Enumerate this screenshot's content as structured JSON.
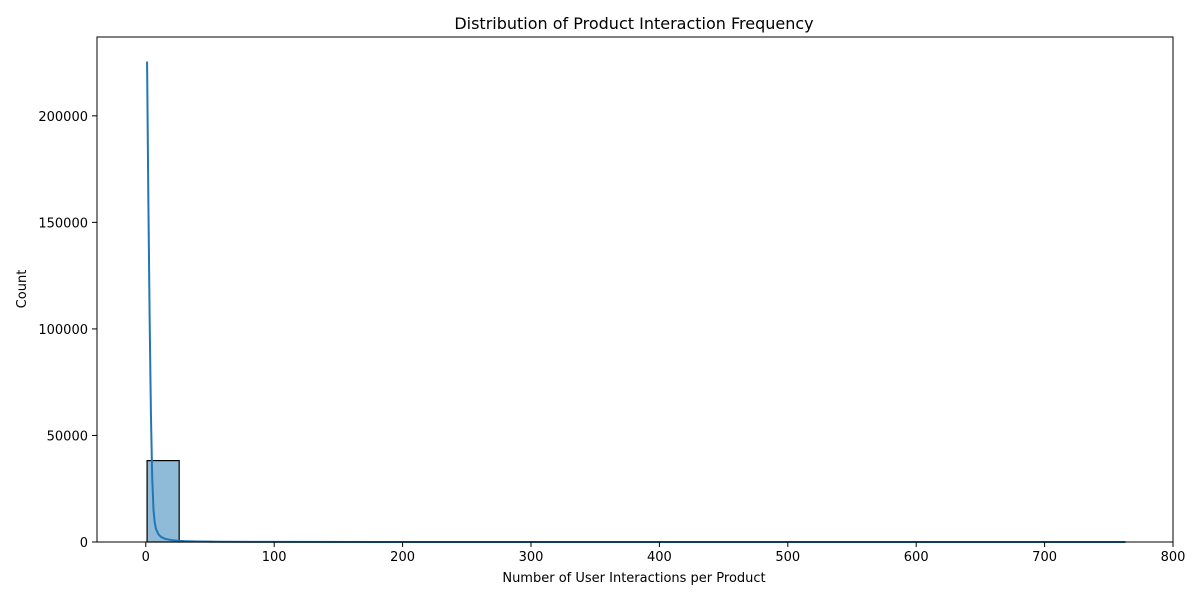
{
  "chart_data": {
    "type": "bar",
    "title": "Distribution of Product Interaction Frequency",
    "xlabel": "Number of User Interactions per Product",
    "ylabel": "Count",
    "xlim": [
      -38,
      800
    ],
    "ylim": [
      0,
      237000
    ],
    "x_ticks": [
      0,
      100,
      200,
      300,
      400,
      500,
      600,
      700,
      800
    ],
    "y_ticks": [
      0,
      50000,
      100000,
      150000,
      200000
    ],
    "grid": false,
    "bins": [
      {
        "x0": 1,
        "x1": 26,
        "count": 38200
      },
      {
        "x0": 26,
        "x1": 51,
        "count": 250
      },
      {
        "x0": 51,
        "x1": 76,
        "count": 60
      },
      {
        "x0": 76,
        "x1": 101,
        "count": 25
      },
      {
        "x0": 101,
        "x1": 126,
        "count": 12
      },
      {
        "x0": 126,
        "x1": 151,
        "count": 8
      },
      {
        "x0": 151,
        "x1": 176,
        "count": 5
      },
      {
        "x0": 176,
        "x1": 201,
        "count": 4
      },
      {
        "x0": 201,
        "x1": 226,
        "count": 3
      }
    ],
    "kde": {
      "x": [
        1,
        2,
        3,
        4,
        5,
        6,
        7,
        8,
        10,
        12,
        15,
        20,
        25,
        30,
        40,
        60,
        100,
        200,
        400,
        763
      ],
      "y": [
        225500,
        160000,
        105000,
        60000,
        30000,
        15000,
        9000,
        6000,
        3500,
        2300,
        1500,
        900,
        600,
        400,
        250,
        120,
        60,
        20,
        5,
        0
      ]
    },
    "colors": {
      "bar_fill": "#1f77b4",
      "bar_fill_opacity": 0.5,
      "bar_edge": "#000000",
      "kde_line": "#1f77b4"
    }
  }
}
